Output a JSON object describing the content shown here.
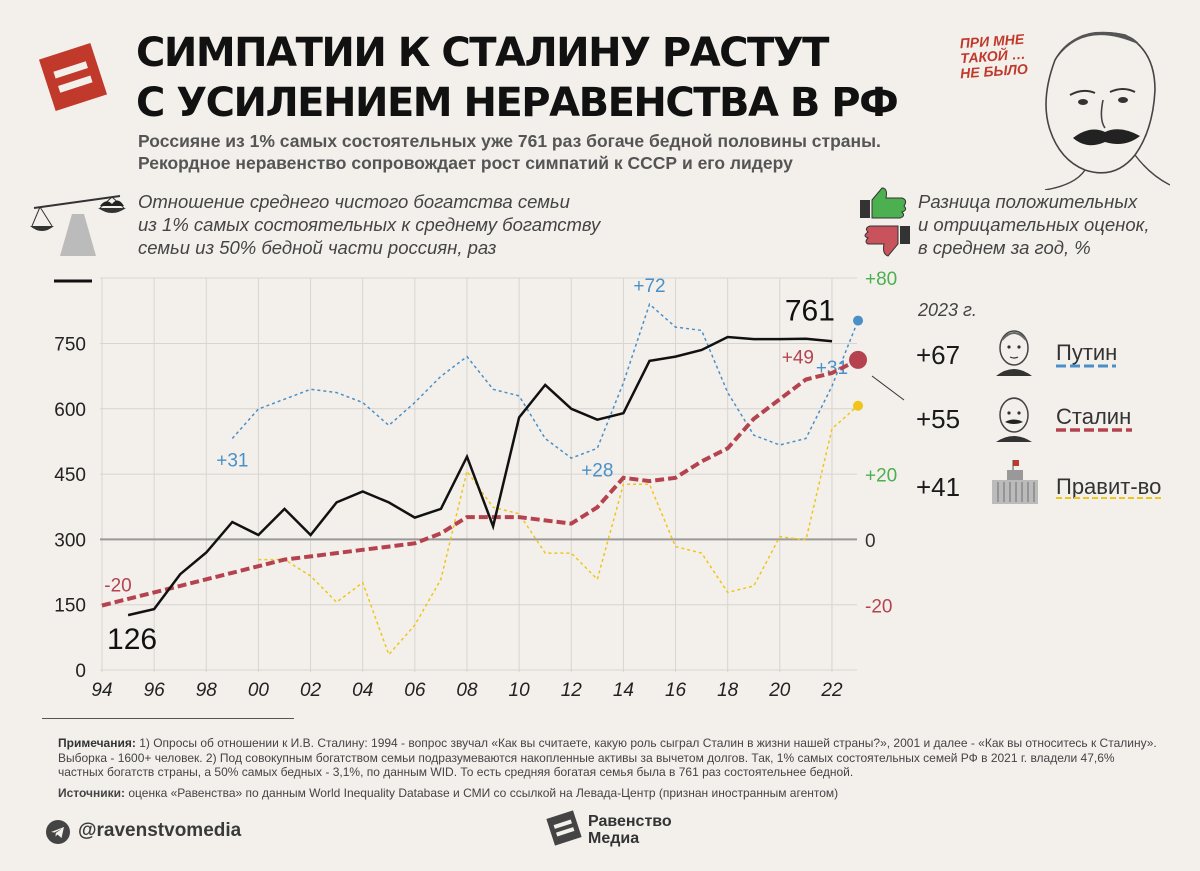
{
  "header": {
    "title_line1": "СИМПАТИИ К СТАЛИНУ РАСТУТ",
    "title_line2": "С УСИЛЕНИЕМ НЕРАВЕНСТВА В РФ",
    "subtitle_line1": "Россияне из 1% самых состоятельных уже 761 раз богаче бедной половины страны.",
    "subtitle_line2": "Рекордное неравенство сопровождает рост симпатий к СССР и его лидеру",
    "quote_line1": "ПРИ МНЕ",
    "quote_line2": "ТАКОЙ …",
    "quote_line3": "НЕ БЫЛО"
  },
  "left_legend": {
    "line1": "Отношение среднего чистого богатства семьи",
    "line2": "из 1% самых состоятельных к среднему богатству",
    "line3": "семьи из 50% бедной части россиян, раз"
  },
  "right_legend": {
    "line1": "Разница положительных",
    "line2": "и отрицательных оценок,",
    "line3": "в среднем за год, %",
    "year": "2023 г.",
    "items": [
      {
        "value": "+67",
        "name": "Путин",
        "color": "#4a90c8"
      },
      {
        "value": "+55",
        "name": "Сталин",
        "color": "#b5434f"
      },
      {
        "value": "+41",
        "name": "Правит-во",
        "color": "#f0c419"
      }
    ]
  },
  "chart_data": {
    "type": "line",
    "x": [
      1994,
      1995,
      1996,
      1997,
      1998,
      1999,
      2000,
      2001,
      2002,
      2003,
      2004,
      2005,
      2006,
      2007,
      2008,
      2009,
      2010,
      2011,
      2012,
      2013,
      2014,
      2015,
      2016,
      2017,
      2018,
      2019,
      2020,
      2021,
      2022,
      2023
    ],
    "xticks": [
      "94",
      "96",
      "98",
      "00",
      "02",
      "04",
      "06",
      "08",
      "10",
      "12",
      "14",
      "16",
      "18",
      "20",
      "22"
    ],
    "left_axis": {
      "ticks": [
        "0",
        "150",
        "300",
        "450",
        "600",
        "750"
      ],
      "ylim": [
        0,
        900
      ]
    },
    "right_axis": {
      "ticks": [
        "-20",
        "0",
        "+20",
        "+80"
      ],
      "ylim": [
        -40,
        80
      ]
    },
    "wealth_ratio": {
      "values": [
        null,
        126,
        140,
        220,
        270,
        340,
        310,
        370,
        310,
        385,
        410,
        385,
        350,
        370,
        490,
        330,
        580,
        655,
        600,
        575,
        590,
        710,
        720,
        735,
        765,
        760,
        760,
        761,
        755,
        null
      ],
      "color": "#111111",
      "labels": [
        {
          "x": 1995,
          "text": "126"
        },
        {
          "x": 2021,
          "text": "761"
        }
      ]
    },
    "series": [
      {
        "name": "Путин",
        "color": "#4a90c8",
        "values": [
          null,
          null,
          null,
          null,
          null,
          31,
          40,
          43,
          46,
          45,
          42,
          35,
          42,
          50,
          56,
          46,
          44,
          31,
          25,
          28,
          48,
          72,
          65,
          64,
          45,
          32,
          29,
          31,
          47,
          67
        ],
        "labels": [
          {
            "x": 1999,
            "text": "+31"
          },
          {
            "x": 2013,
            "text": "+28"
          },
          {
            "x": 2015,
            "text": "+72"
          },
          {
            "x": 2022,
            "text": "+31"
          }
        ]
      },
      {
        "name": "Сталин",
        "color": "#b5434f",
        "values": [
          -20,
          -18,
          -16,
          -14,
          -12,
          -10,
          -8,
          -6,
          -5,
          -4,
          -3,
          -2,
          -1,
          2,
          7,
          7,
          7,
          6,
          5,
          10,
          19,
          18,
          19,
          24,
          28,
          37,
          43,
          49,
          51,
          55
        ],
        "labels": [
          {
            "x": 1994,
            "text": "-20"
          },
          {
            "x": 2021,
            "text": "+49"
          }
        ]
      },
      {
        "name": "Правит-во",
        "color": "#f0c419",
        "values": [
          null,
          null,
          null,
          null,
          null,
          null,
          -6,
          -6,
          -11,
          -19,
          -13,
          -35,
          -26,
          -12,
          21,
          10,
          8,
          -4,
          -4,
          -12,
          17,
          17,
          -2,
          -4,
          -16,
          -14,
          1,
          0,
          34,
          41
        ],
        "labels": []
      }
    ]
  },
  "footer": {
    "notes_label": "Примечания:",
    "notes_text": "1) Опросы об отношении к И.В. Сталину: 1994 - вопрос звучал «Как вы считаете, какую роль сыграл Сталин в жизни нашей страны?», 2001 и далее - «Как вы относитесь к Сталину». Выборка - 1600+ человек. 2) Под совокупным богатством семьи подразумеваются накопленные активы за вычетом долгов. Так, 1% самых состоятельных семей РФ в 2021 г. владели 47,6% частных богатств страны, а 50% самых бедных - 3,1%, по данным WID. То есть средняя богатая семья была в 761 раз состоятельнее бедной.",
    "sources_label": "Источники:",
    "sources_text": "оценка «Равенства» по данным World Inequality Database и СМИ со ссылкой на Левада-Центр (признан иностранным агентом)",
    "handle": "@ravenstvomedia",
    "brand_line1": "Равенство",
    "brand_line2": "Медиа"
  }
}
